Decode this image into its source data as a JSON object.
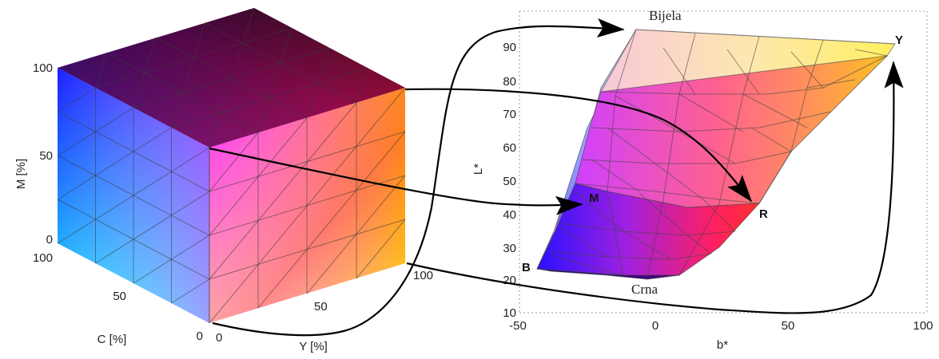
{
  "left_cube": {
    "m_axis": {
      "label": "M [%]",
      "ticks": [
        "100",
        "50",
        "0"
      ]
    },
    "c_axis": {
      "label": "C [%]",
      "ticks": [
        "100",
        "50",
        "0"
      ]
    },
    "y_axis": {
      "label": "Y [%]",
      "ticks": [
        "0",
        "50",
        "100"
      ]
    }
  },
  "right_plot": {
    "x_axis": {
      "label": "b*",
      "ticks": [
        "-50",
        "0",
        "50",
        "100"
      ]
    },
    "y_axis": {
      "label": "L*",
      "ticks": [
        "10",
        "20",
        "30",
        "40",
        "50",
        "60",
        "70",
        "80",
        "90"
      ]
    },
    "labels": {
      "white": "Bijela",
      "black": "Crna",
      "yellow": "Y",
      "red": "R",
      "magenta": "M",
      "blue": "B"
    }
  }
}
